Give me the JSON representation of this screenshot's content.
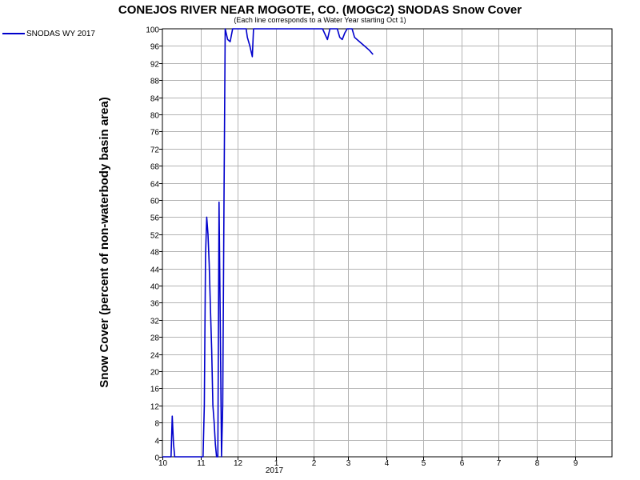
{
  "chart_data": {
    "type": "line",
    "title": "CONEJOS RIVER NEAR MOGOTE, CO. (MOGC2) SNODAS Snow Cover",
    "subtitle": "(Each line corresponds to a Water Year starting Oct 1)",
    "ylabel": "Snow Cover (percent of non-waterbody basin area)",
    "xlabel": "",
    "ylim": [
      0,
      100
    ],
    "yticks": [
      0,
      4,
      8,
      12,
      16,
      20,
      24,
      28,
      32,
      36,
      40,
      44,
      48,
      52,
      56,
      60,
      64,
      68,
      72,
      76,
      80,
      84,
      88,
      92,
      96,
      100
    ],
    "xlim": [
      "2016-10-01",
      "2017-09-30"
    ],
    "xticks": [
      {
        "date": "2016-10-01",
        "label": "10"
      },
      {
        "date": "2016-11-01",
        "label": "11"
      },
      {
        "date": "2016-12-01",
        "label": "12"
      },
      {
        "date": "2017-01-01",
        "label": "1"
      },
      {
        "date": "2017-02-01",
        "label": "2"
      },
      {
        "date": "2017-03-01",
        "label": "3"
      },
      {
        "date": "2017-04-01",
        "label": "4"
      },
      {
        "date": "2017-05-01",
        "label": "5"
      },
      {
        "date": "2017-06-01",
        "label": "6"
      },
      {
        "date": "2017-07-01",
        "label": "7"
      },
      {
        "date": "2017-08-01",
        "label": "8"
      },
      {
        "date": "2017-09-01",
        "label": "9"
      }
    ],
    "year_label": "2017",
    "grid": true,
    "legend_position": "top-left",
    "series": [
      {
        "name": "SNODAS WY 2017",
        "color": "#0000cc",
        "points": [
          [
            "2016-10-01",
            0
          ],
          [
            "2016-10-08",
            0
          ],
          [
            "2016-10-09",
            9.5
          ],
          [
            "2016-10-10",
            3
          ],
          [
            "2016-10-11",
            0
          ],
          [
            "2016-10-20",
            0
          ],
          [
            "2016-10-31",
            0
          ],
          [
            "2016-11-03",
            0
          ],
          [
            "2016-11-04",
            12
          ],
          [
            "2016-11-05",
            47
          ],
          [
            "2016-11-06",
            56
          ],
          [
            "2016-11-07",
            52
          ],
          [
            "2016-11-08",
            45
          ],
          [
            "2016-11-09",
            35
          ],
          [
            "2016-11-10",
            25
          ],
          [
            "2016-11-11",
            12
          ],
          [
            "2016-11-12",
            8
          ],
          [
            "2016-11-13",
            3
          ],
          [
            "2016-11-14",
            0
          ],
          [
            "2016-11-15",
            0
          ],
          [
            "2016-11-16",
            59.5
          ],
          [
            "2016-11-17",
            30
          ],
          [
            "2016-11-18",
            0
          ],
          [
            "2016-11-19",
            12
          ],
          [
            "2016-11-20",
            60
          ],
          [
            "2016-11-21",
            100
          ],
          [
            "2016-11-23",
            97.5
          ],
          [
            "2016-11-25",
            97
          ],
          [
            "2016-11-27",
            100
          ],
          [
            "2016-12-01",
            100
          ],
          [
            "2016-12-08",
            100
          ],
          [
            "2016-12-09",
            98
          ],
          [
            "2016-12-11",
            96
          ],
          [
            "2016-12-13",
            93.5
          ],
          [
            "2016-12-14",
            100
          ],
          [
            "2016-12-20",
            100
          ],
          [
            "2017-01-31",
            100
          ],
          [
            "2017-02-08",
            100
          ],
          [
            "2017-02-12",
            97.5
          ],
          [
            "2017-02-14",
            100
          ],
          [
            "2017-02-20",
            100
          ],
          [
            "2017-02-22",
            98
          ],
          [
            "2017-02-24",
            97.5
          ],
          [
            "2017-02-26",
            99
          ],
          [
            "2017-02-28",
            100
          ],
          [
            "2017-03-04",
            100
          ],
          [
            "2017-03-06",
            98
          ],
          [
            "2017-03-10",
            97
          ],
          [
            "2017-03-14",
            96
          ],
          [
            "2017-03-18",
            95
          ],
          [
            "2017-03-21",
            94
          ]
        ]
      }
    ]
  }
}
